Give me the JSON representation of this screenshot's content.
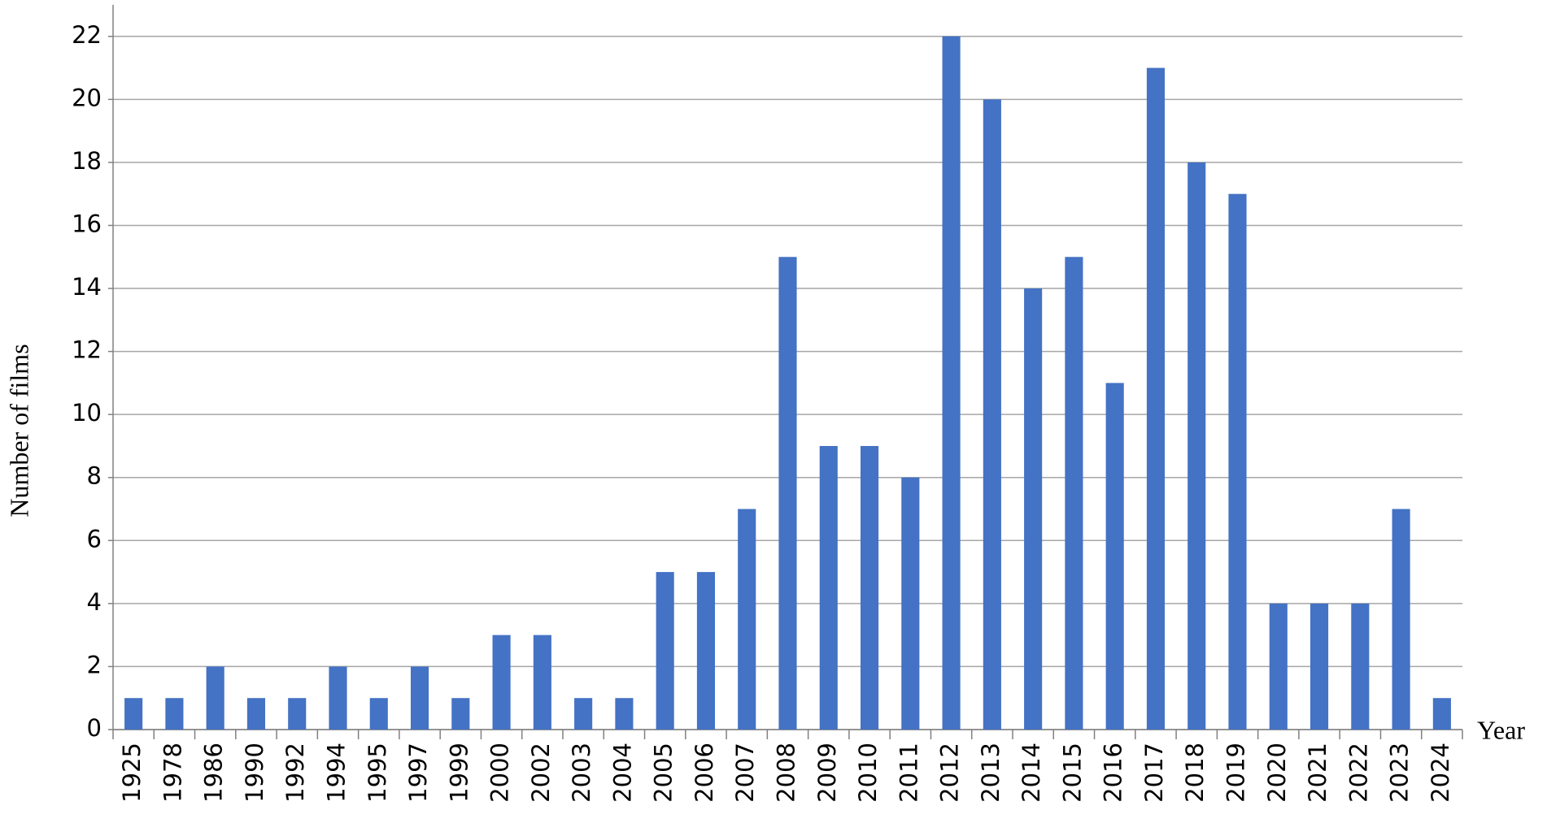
{
  "chart_data": {
    "type": "bar",
    "x_label": "Year",
    "y_label": "Number of films",
    "categories": [
      "1925",
      "1978",
      "1986",
      "1990",
      "1992",
      "1994",
      "1995",
      "1997",
      "1999",
      "2000",
      "2002",
      "2003",
      "2004",
      "2005",
      "2006",
      "2007",
      "2008",
      "2009",
      "2010",
      "2011",
      "2012",
      "2013",
      "2014",
      "2015",
      "2016",
      "2017",
      "2018",
      "2019",
      "2020",
      "2021",
      "2022",
      "2023",
      "2024"
    ],
    "values": [
      1,
      1,
      2,
      1,
      1,
      2,
      1,
      2,
      1,
      3,
      3,
      1,
      1,
      5,
      5,
      7,
      15,
      9,
      9,
      8,
      22,
      20,
      14,
      15,
      11,
      21,
      18,
      17,
      4,
      4,
      4,
      7,
      1
    ],
    "color": "#4472c4",
    "ylim": [
      0,
      23
    ],
    "yticks": [
      0,
      2,
      4,
      6,
      8,
      10,
      12,
      14,
      16,
      18,
      20,
      22
    ],
    "grid": true
  }
}
